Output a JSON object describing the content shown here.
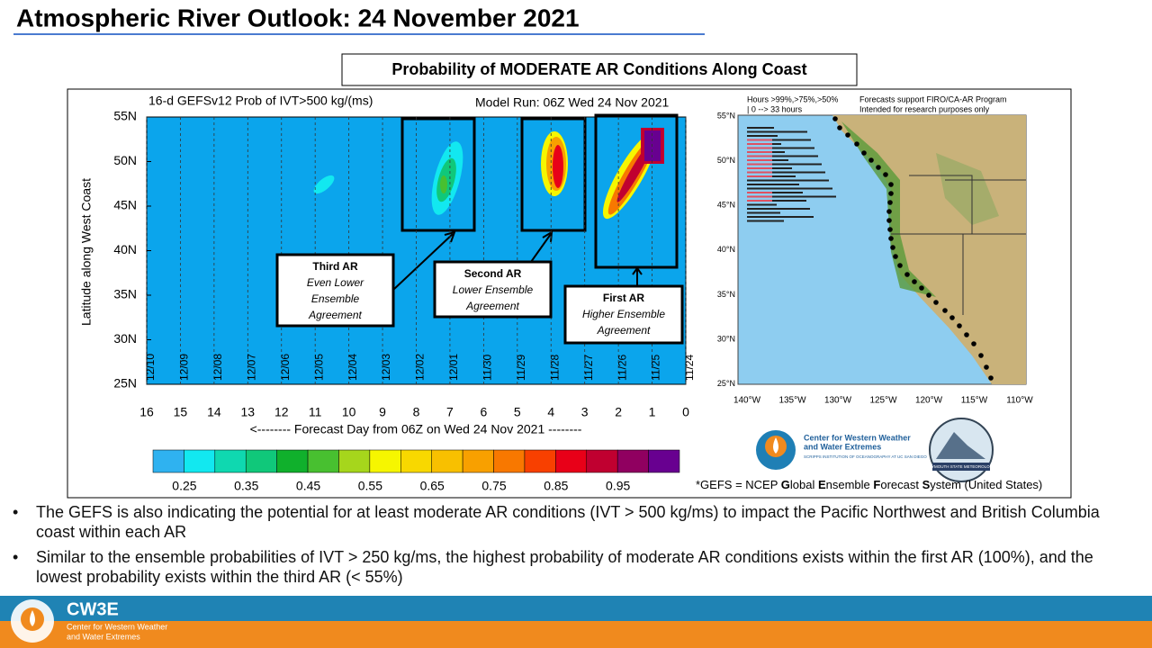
{
  "title": "Atmospheric River Outlook: 24 November 2021",
  "panel_title": "Probability of MODERATE AR Conditions Along Coast",
  "plot": {
    "title": "16-d GEFSv12 Prob of IVT>500 kg/(ms)",
    "model_run": "Model Run: 06Z Wed 24 Nov 2021",
    "y_label": "Latitude along West Coast",
    "y_ticks": [
      "55N",
      "50N",
      "45N",
      "40N",
      "35N",
      "30N",
      "25N"
    ],
    "dates": [
      "12/10",
      "12/09",
      "12/08",
      "12/07",
      "12/06",
      "12/05",
      "12/04",
      "12/03",
      "12/02",
      "12/01",
      "11/30",
      "11/29",
      "11/28",
      "11/27",
      "11/26",
      "11/25",
      "11/24"
    ],
    "days": [
      "16",
      "15",
      "14",
      "13",
      "12",
      "11",
      "10",
      "9",
      "8",
      "7",
      "6",
      "5",
      "4",
      "3",
      "2",
      "1",
      "0"
    ],
    "x_label": "<-------- Forecast Day from 06Z on Wed 24 Nov 2021 --------",
    "annotations": [
      {
        "title": "Third AR",
        "text": [
          "Even Lower",
          "Ensemble",
          "Agreement"
        ]
      },
      {
        "title": "Second AR",
        "text": [
          "Lower Ensemble",
          "Agreement"
        ]
      },
      {
        "title": "First AR",
        "text": [
          "Higher Ensemble",
          "Agreement"
        ]
      }
    ]
  },
  "colorbar": {
    "colors": [
      "#2fb2f0",
      "#12e8f0",
      "#0fd8b0",
      "#10c87a",
      "#10b02c",
      "#48c030",
      "#a6d61c",
      "#f6f600",
      "#f8d800",
      "#f8c000",
      "#f8a000",
      "#f87800",
      "#f84000",
      "#e80018",
      "#c00030",
      "#900060",
      "#680090"
    ],
    "labels": [
      "0.25",
      "0.35",
      "0.45",
      "0.55",
      "0.65",
      "0.75",
      "0.85",
      "0.95"
    ]
  },
  "map": {
    "header": [
      "Hours >99%,>75%,>50%",
      "| 0 --> 33 hours",
      "Forecasts support FIRO/CA-AR Program",
      "Intended for research purposes only"
    ],
    "lat_labels": [
      "55°N",
      "50°N",
      "45°N",
      "40°N",
      "35°N",
      "30°N",
      "25°N"
    ],
    "lon_labels": [
      "140°W",
      "135°W",
      "130°W",
      "125°W",
      "120°W",
      "115°W",
      "110°W"
    ]
  },
  "logos": {
    "cw3e_line1": "Center for Western Weather",
    "cw3e_line2": "and Water Extremes",
    "scripps": "SCRIPPS INSTITUTION OF OCEANOGRAPHY AT UC SAN DIEGO",
    "plymouth": "PLYMOUTH STATE METEOROLOGY"
  },
  "footnote": [
    "*GEFS = NCEP ",
    "G",
    "lobal ",
    "E",
    "nsemble ",
    "F",
    "orecast ",
    "S",
    "ystem (United States)"
  ],
  "bullets": [
    "The GEFS is also indicating the potential for at least moderate AR conditions (IVT > 500 kg/ms) to impact the Pacific Northwest and British Columbia coast within each AR",
    "Similar to the ensemble probabilities of IVT > 250 kg/ms, the highest probability of moderate AR conditions exists within the first AR (100%), and the lowest probability exists within the third AR (< 55%)"
  ],
  "footer": {
    "name": "CW3E",
    "line1": "Center for Western Weather",
    "line2": "and Water Extremes"
  }
}
